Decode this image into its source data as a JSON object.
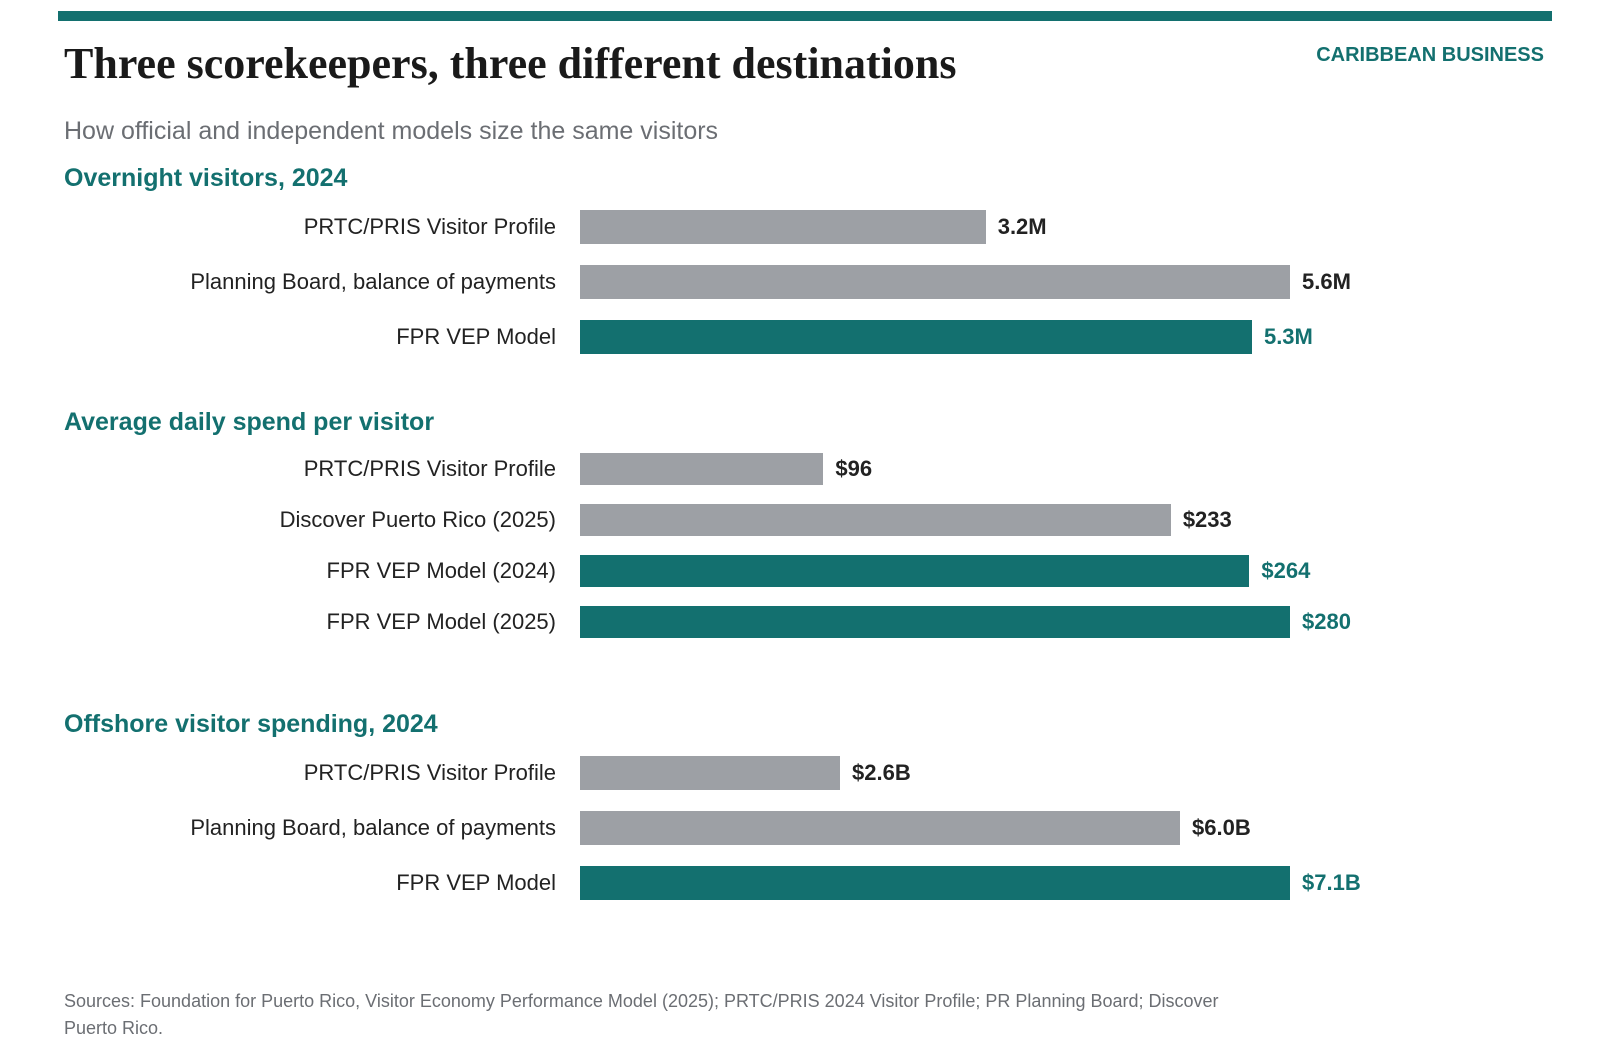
{
  "header": {
    "title": "Three scorekeepers, three different destinations",
    "brand": "CARIBBEAN BUSINESS",
    "subtitle": "How official and independent models size the same visitors"
  },
  "colors": {
    "accent": "#13706f",
    "neutral_bar": "#9da0a5",
    "neutral_value": "#222222"
  },
  "chart_data": [
    {
      "type": "bar",
      "orientation": "horizontal",
      "title": "Overnight visitors, 2024",
      "categories": [
        "PRTC/PRIS Visitor Profile",
        "Planning Board, balance of payments",
        "FPR VEP Model"
      ],
      "values": [
        3.2,
        5.6,
        5.3
      ],
      "value_labels": [
        "3.2M",
        "5.6M",
        "5.3M"
      ],
      "highlight": [
        false,
        false,
        true
      ],
      "xlim": [
        0,
        5.6
      ]
    },
    {
      "type": "bar",
      "orientation": "horizontal",
      "title": "Average daily spend per visitor",
      "categories": [
        "PRTC/PRIS Visitor Profile",
        "Discover Puerto Rico (2025)",
        "FPR VEP Model (2024)",
        "FPR VEP Model (2025)"
      ],
      "values": [
        96,
        233,
        264,
        280
      ],
      "value_labels": [
        "$96",
        "$233",
        "$264",
        "$280"
      ],
      "highlight": [
        false,
        false,
        true,
        true
      ],
      "xlim": [
        0,
        280
      ]
    },
    {
      "type": "bar",
      "orientation": "horizontal",
      "title": "Offshore visitor spending, 2024",
      "categories": [
        "PRTC/PRIS Visitor Profile",
        "Planning Board, balance of payments",
        "FPR VEP Model"
      ],
      "values": [
        2.6,
        6.0,
        7.1
      ],
      "value_labels": [
        "$2.6B",
        "$6.0B",
        "$7.1B"
      ],
      "highlight": [
        false,
        false,
        true
      ],
      "xlim": [
        0,
        7.1
      ]
    }
  ],
  "footer": {
    "sources": "Sources: Foundation for Puerto Rico, Visitor Economy Performance Model (2025); PRTC/PRIS 2024 Visitor Profile; PR Planning Board; Discover Puerto Rico."
  }
}
